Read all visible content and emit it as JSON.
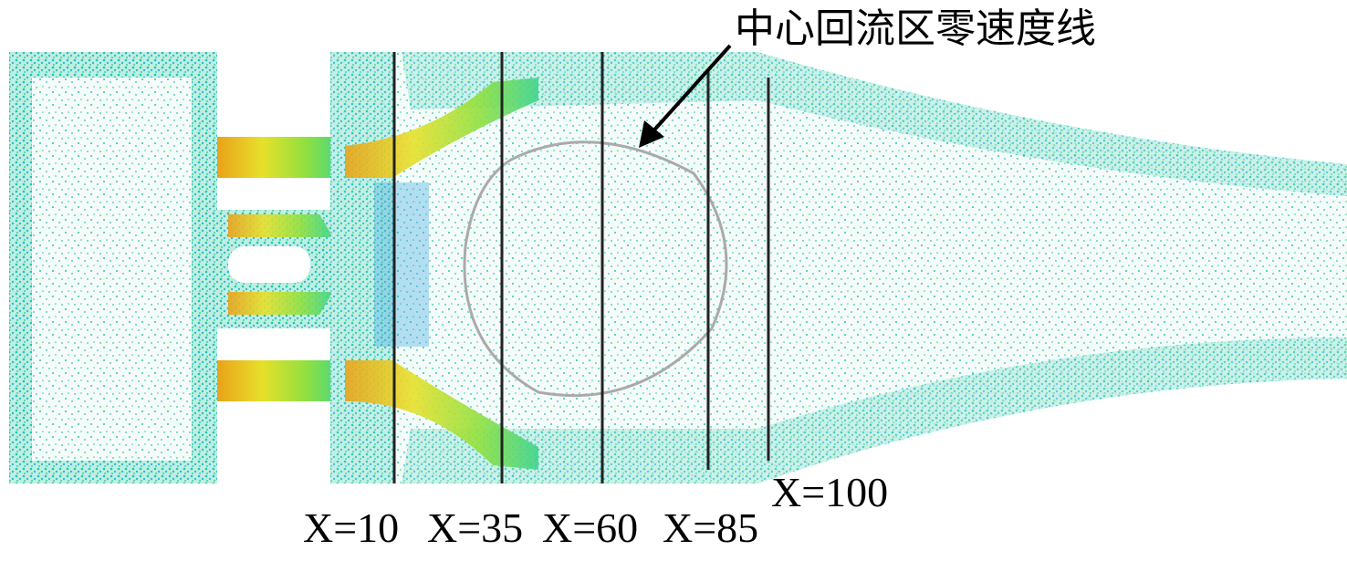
{
  "annotation": "中心回流区零速度线",
  "stations": [
    {
      "label": "X=10"
    },
    {
      "label": "X=35"
    },
    {
      "label": "X=60"
    },
    {
      "label": "X=85"
    },
    {
      "label": "X=100"
    }
  ]
}
